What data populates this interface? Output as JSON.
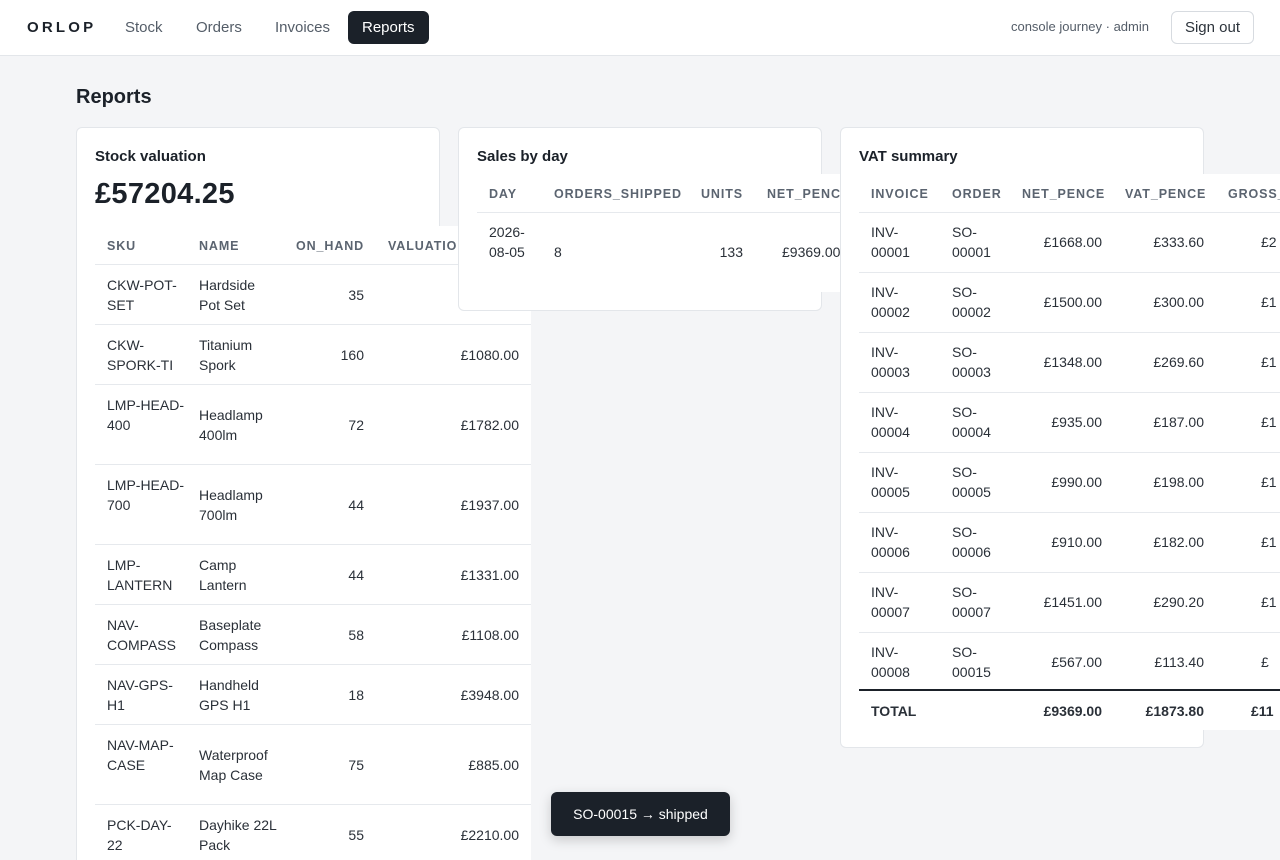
{
  "header": {
    "brand": "ORLOP",
    "nav": [
      {
        "label": "Stock"
      },
      {
        "label": "Orders"
      },
      {
        "label": "Invoices"
      },
      {
        "label": "Reports",
        "active": true
      }
    ],
    "user": "console journey · admin",
    "signout": "Sign out"
  },
  "page": {
    "title": "Reports"
  },
  "stock": {
    "title": "Stock valuation",
    "total": "£57204.25",
    "columns": [
      "SKU",
      "NAME",
      "ON_HAND",
      "VALUATION"
    ],
    "rows": [
      [
        "CKW-POT-SET",
        "Hardside Pot Set",
        "35",
        "£"
      ],
      [
        "CKW-SPORK-TI",
        "Titanium Spork",
        "160",
        "£1080.00"
      ],
      [
        "LMP-HEAD-400",
        "Headlamp 400lm",
        "72",
        "£1782.00"
      ],
      [
        "LMP-HEAD-700",
        "Headlamp 700lm",
        "44",
        "£1937.00"
      ],
      [
        "LMP-LANTERN",
        "Camp Lantern",
        "44",
        "£1331.00"
      ],
      [
        "NAV-COMPASS",
        "Baseplate Compass",
        "58",
        "£1108.00"
      ],
      [
        "NAV-GPS-H1",
        "Handheld GPS H1",
        "18",
        "£3948.00"
      ],
      [
        "NAV-MAP-CASE",
        "Waterproof Map Case",
        "75",
        "£885.00"
      ],
      [
        "PCK-DAY-22",
        "Dayhike 22L Pack",
        "55",
        "£2210.00"
      ]
    ]
  },
  "sales": {
    "title": "Sales by day",
    "columns": [
      "DAY",
      "ORDERS_SHIPPED",
      "UNITS",
      "NET_PENCE"
    ],
    "rows": [
      [
        "2026-08-05",
        "8",
        "133",
        "£9369.00"
      ]
    ]
  },
  "vat": {
    "title": "VAT summary",
    "columns": [
      "INVOICE",
      "ORDER",
      "NET_PENCE",
      "VAT_PENCE",
      "GROSS_PENCE"
    ],
    "rows": [
      [
        "INV-00001",
        "SO-00001",
        "£1668.00",
        "£333.60",
        "£2"
      ],
      [
        "INV-00002",
        "SO-00002",
        "£1500.00",
        "£300.00",
        "£1"
      ],
      [
        "INV-00003",
        "SO-00003",
        "£1348.00",
        "£269.60",
        "£1"
      ],
      [
        "INV-00004",
        "SO-00004",
        "£935.00",
        "£187.00",
        "£1"
      ],
      [
        "INV-00005",
        "SO-00005",
        "£990.00",
        "£198.00",
        "£1"
      ],
      [
        "INV-00006",
        "SO-00006",
        "£910.00",
        "£182.00",
        "£1"
      ],
      [
        "INV-00007",
        "SO-00007",
        "£1451.00",
        "£290.20",
        "£1"
      ],
      [
        "INV-00008",
        "SO-00015",
        "£567.00",
        "£113.40",
        "£"
      ]
    ],
    "total": {
      "label": "TOTAL",
      "net": "£9369.00",
      "vat": "£1873.80",
      "gross": "£11"
    }
  },
  "toast": "SO-00015 → shipped"
}
